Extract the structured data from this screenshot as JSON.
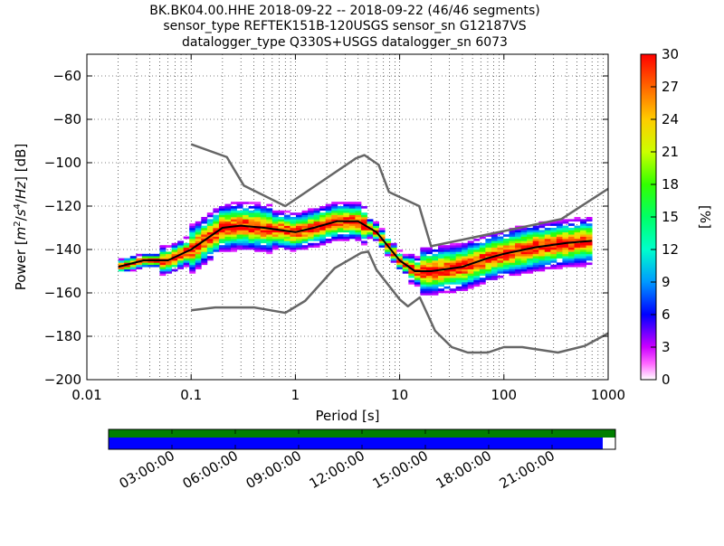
{
  "title_lines": [
    "BK.BK04.00.HHE   2018-09-22 -- 2018-09-22  (46/46 segments)",
    "sensor_type REFTEK151B-120USGS sensor_sn G12187VS",
    "datalogger_type Q330S+USGS datalogger_sn 6073"
  ],
  "colorbar": {
    "label": "[%]",
    "ticks": [
      "0",
      "3",
      "6",
      "9",
      "12",
      "15",
      "18",
      "21",
      "24",
      "27",
      "30"
    ],
    "range": [
      0,
      30
    ]
  },
  "timeline": {
    "labels": [
      "03:00:00",
      "06:00:00",
      "09:00:00",
      "12:00:00",
      "15:00:00",
      "18:00:00",
      "21:00:00"
    ],
    "top_bar_color": "#007f00",
    "bottom_bar_color": "#0000ff",
    "bottom_bar_coverage": 0.975
  },
  "chart_data": {
    "type": "heatmap",
    "xlabel": "Period [s]",
    "ylabel": "Power [m²/s⁴/Hz] [dB]",
    "xscale": "log",
    "xlim": [
      0.01,
      1000
    ],
    "ylim": [
      -200,
      -50
    ],
    "xticks": [
      "0.01",
      "0.1",
      "1",
      "10",
      "100",
      "1000"
    ],
    "yticks": [
      "−200",
      "−180",
      "−160",
      "−140",
      "−120",
      "−100",
      "−80",
      "−60"
    ],
    "grid": true,
    "series": [
      {
        "role": "noise-model-high",
        "color": "#666666",
        "points": [
          [
            0.1,
            -91.5
          ],
          [
            0.22,
            -97.4
          ],
          [
            0.32,
            -110.5
          ],
          [
            0.8,
            -120
          ],
          [
            3.8,
            -98
          ],
          [
            4.6,
            -96.5
          ],
          [
            6.3,
            -101
          ],
          [
            7.9,
            -113.5
          ],
          [
            15.4,
            -120
          ],
          [
            20,
            -138.5
          ],
          [
            354.8,
            -126
          ],
          [
            1000,
            -112
          ]
        ]
      },
      {
        "role": "noise-model-low",
        "color": "#666666",
        "points": [
          [
            0.1,
            -168
          ],
          [
            0.17,
            -166.7
          ],
          [
            0.4,
            -166.7
          ],
          [
            0.8,
            -169.2
          ],
          [
            1.24,
            -163.7
          ],
          [
            2.38,
            -148.6
          ],
          [
            4.3,
            -141.5
          ],
          [
            5.0,
            -141
          ],
          [
            6.0,
            -149.4
          ],
          [
            10.0,
            -163
          ],
          [
            12.0,
            -166.2
          ],
          [
            15.6,
            -162.1
          ],
          [
            21.9,
            -177.5
          ],
          [
            31.6,
            -185
          ],
          [
            45,
            -187.5
          ],
          [
            70,
            -187.5
          ],
          [
            100,
            -185
          ],
          [
            150,
            -185
          ],
          [
            330,
            -187.5
          ],
          [
            600,
            -184.4
          ],
          [
            1000,
            -178.6
          ]
        ]
      },
      {
        "role": "mean-psd",
        "color": "#000000",
        "points": [
          [
            0.02,
            -148
          ],
          [
            0.035,
            -145
          ],
          [
            0.06,
            -145
          ],
          [
            0.1,
            -140
          ],
          [
            0.2,
            -130
          ],
          [
            0.3,
            -129
          ],
          [
            0.5,
            -130
          ],
          [
            1,
            -132
          ],
          [
            1.5,
            -130
          ],
          [
            2.5,
            -127
          ],
          [
            4,
            -127
          ],
          [
            6,
            -132
          ],
          [
            10,
            -145
          ],
          [
            14,
            -150
          ],
          [
            20,
            -150
          ],
          [
            40,
            -148
          ],
          [
            70,
            -144
          ],
          [
            100,
            -142
          ],
          [
            200,
            -139
          ],
          [
            400,
            -137
          ],
          [
            700,
            -136
          ]
        ]
      }
    ]
  }
}
